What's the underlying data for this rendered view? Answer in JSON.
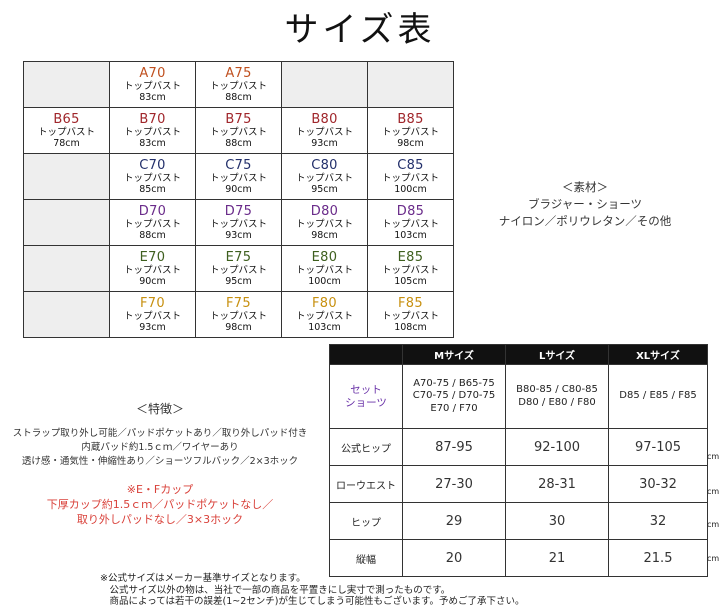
{
  "title": "サイズ表",
  "grid": {
    "rows": [
      [
        {
          "empty": true
        },
        {
          "size": "A70",
          "color": "#c0501f",
          "bust": "トップバスト 83cm"
        },
        {
          "size": "A75",
          "color": "#c0501f",
          "bust": "トップバスト 88cm"
        },
        {
          "empty": true
        },
        {
          "empty": true
        }
      ],
      [
        {
          "size": "B65",
          "color": "#a0262b",
          "bust": "トップバスト 78cm"
        },
        {
          "size": "B70",
          "color": "#a0262b",
          "bust": "トップバスト 83cm"
        },
        {
          "size": "B75",
          "color": "#a0262b",
          "bust": "トップバスト 88cm"
        },
        {
          "size": "B80",
          "color": "#a0262b",
          "bust": "トップバスト 93cm"
        },
        {
          "size": "B85",
          "color": "#a0262b",
          "bust": "トップバスト 98cm"
        }
      ],
      [
        {
          "empty": true
        },
        {
          "size": "C70",
          "color": "#23306b",
          "bust": "トップバスト 85cm"
        },
        {
          "size": "C75",
          "color": "#23306b",
          "bust": "トップバスト 90cm"
        },
        {
          "size": "C80",
          "color": "#23306b",
          "bust": "トップバスト 95cm"
        },
        {
          "size": "C85",
          "color": "#23306b",
          "bust": "トップバスト 100cm"
        }
      ],
      [
        {
          "empty": true
        },
        {
          "size": "D70",
          "color": "#6a2b8a",
          "bust": "トップバスト 88cm"
        },
        {
          "size": "D75",
          "color": "#6a2b8a",
          "bust": "トップバスト 93cm"
        },
        {
          "size": "D80",
          "color": "#6a2b8a",
          "bust": "トップバスト 98cm"
        },
        {
          "size": "D85",
          "color": "#6a2b8a",
          "bust": "トップバスト 103cm"
        }
      ],
      [
        {
          "empty": true
        },
        {
          "size": "E70",
          "color": "#3e5f1e",
          "bust": "トップバスト 90cm"
        },
        {
          "size": "E75",
          "color": "#3e5f1e",
          "bust": "トップバスト 95cm"
        },
        {
          "size": "E80",
          "color": "#3e5f1e",
          "bust": "トップバスト 100cm"
        },
        {
          "size": "E85",
          "color": "#3e5f1e",
          "bust": "トップバスト 105cm"
        }
      ],
      [
        {
          "empty": true
        },
        {
          "size": "F70",
          "color": "#c79010",
          "bust": "トップバスト 93cm"
        },
        {
          "size": "F75",
          "color": "#c79010",
          "bust": "トップバスト 98cm"
        },
        {
          "size": "F80",
          "color": "#c79010",
          "bust": "トップバスト 103cm"
        },
        {
          "size": "F85",
          "color": "#c79010",
          "bust": "トップバスト 108cm"
        }
      ]
    ]
  },
  "material": {
    "heading": "＜素材＞",
    "line1": "ブラジャー・ショーツ",
    "line2": "ナイロン／ポリウレタン／その他"
  },
  "features": {
    "heading": "＜特徴＞",
    "lines": [
      "ストラップ取り外し可能／パッドポケットあり／取り外しパッド付き",
      "内蔵パッド約1.5ｃｍ／ワイヤーあり",
      "透け感・通気性・伸縮性あり／ショーツフルバック／2×3ホック"
    ],
    "ef_lines": [
      "※E・Fカップ",
      "下厚カップ約1.5ｃｍ／パッドポケットなし／",
      "取り外しパッドなし／3×3ホック"
    ]
  },
  "size_table": {
    "headers": [
      "",
      "Mサイズ",
      "Lサイズ",
      "XLサイズ"
    ],
    "set_label_line1": "セット",
    "set_label_line2": "ショーツ",
    "set_cells": [
      [
        "A70-75 / B65-75",
        "C70-75 / D70-75",
        "E70 / F70"
      ],
      [
        "B80-85 / C80-85",
        "D80 / E80 / F80"
      ],
      [
        "D85 / E85 / F85"
      ]
    ],
    "rows": [
      {
        "label": "公式ヒップ",
        "values": [
          "87-95",
          "92-100",
          "97-105"
        ]
      },
      {
        "label": "ローウエスト",
        "values": [
          "27-30",
          "28-31",
          "30-32"
        ]
      },
      {
        "label": "ヒップ",
        "values": [
          "29",
          "30",
          "32"
        ]
      },
      {
        "label": "縦幅",
        "values": [
          "20",
          "21",
          "21.5"
        ]
      }
    ],
    "unit": "cm"
  },
  "notes": [
    "※公式サイズはメーカー基準サイズとなります。",
    "　公式サイズ以外の物は、当社で一部の商品を平置きにし実寸で測ったものです。",
    "　商品によっては若干の誤差(1~2センチ)が生じてしまう可能性もございます。予めご了承下さい。"
  ]
}
